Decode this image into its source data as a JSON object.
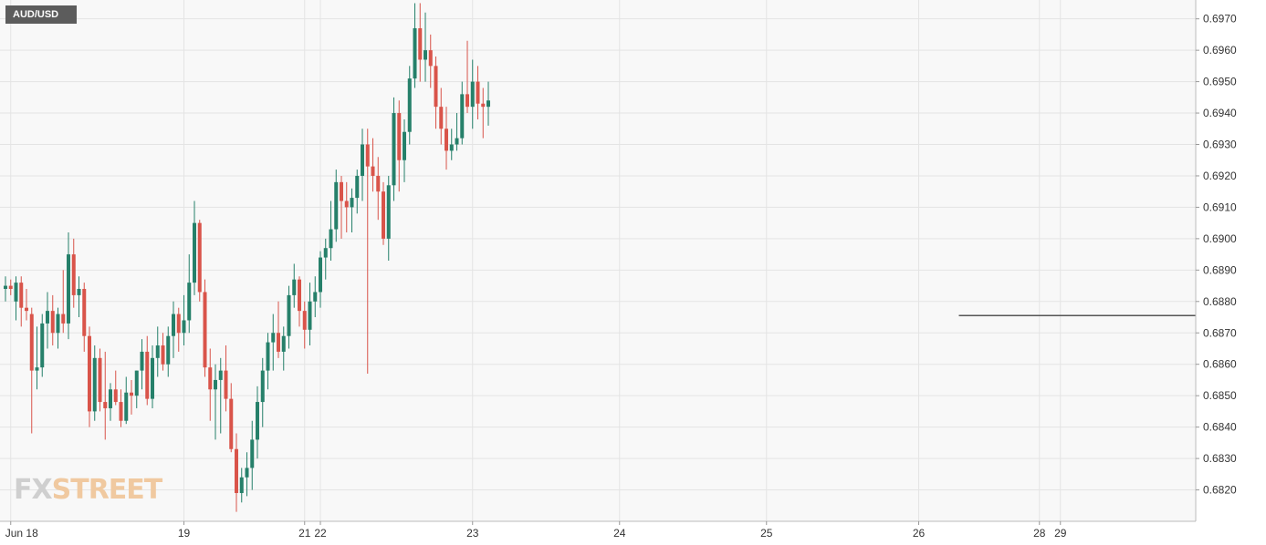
{
  "symbol": "AUD/USD",
  "logo": {
    "part1": "FX",
    "part2": "STREET"
  },
  "colors": {
    "up": "#26806a",
    "down": "#d9544a",
    "grid": "#e4e4e4",
    "background": "#f8f8f8",
    "level_line": "#555555"
  },
  "chart_data": {
    "type": "candlestick",
    "title": "AUD/USD",
    "ylim": [
      0.681,
      0.6976
    ],
    "y_ticks": [
      "0.6820",
      "0.6830",
      "0.6840",
      "0.6850",
      "0.6860",
      "0.6870",
      "0.6880",
      "0.6890",
      "0.6900",
      "0.6910",
      "0.6920",
      "0.6930",
      "0.6940",
      "0.6950",
      "0.6960",
      "0.6970"
    ],
    "x_labels": [
      {
        "label": "Jun 18",
        "index": 1
      },
      {
        "label": "19",
        "index": 34
      },
      {
        "label": "21",
        "index": 57
      },
      {
        "label": "22",
        "index": 60
      },
      {
        "label": "23",
        "index": 89
      },
      {
        "label": "24",
        "index": 117
      },
      {
        "label": "25",
        "index": 145
      },
      {
        "label": "26",
        "index": 174
      },
      {
        "label": "28",
        "index": 197
      },
      {
        "label": "29",
        "index": 201
      }
    ],
    "horizontal_level": {
      "value": 0.68755,
      "from_index": 182
    },
    "grid": true,
    "candles": [
      [
        0.6884,
        0.6888,
        0.688,
        0.6885
      ],
      [
        0.6885,
        0.6887,
        0.6882,
        0.6884
      ],
      [
        0.688,
        0.6888,
        0.6874,
        0.6886
      ],
      [
        0.6886,
        0.6888,
        0.6872,
        0.6878
      ],
      [
        0.6878,
        0.6884,
        0.6874,
        0.6877
      ],
      [
        0.6876,
        0.6878,
        0.6838,
        0.6858
      ],
      [
        0.6858,
        0.6872,
        0.6852,
        0.6859
      ],
      [
        0.6859,
        0.6876,
        0.6856,
        0.6873
      ],
      [
        0.6873,
        0.6883,
        0.6865,
        0.6877
      ],
      [
        0.6877,
        0.6882,
        0.6866,
        0.687
      ],
      [
        0.687,
        0.6878,
        0.6865,
        0.6876
      ],
      [
        0.6876,
        0.689,
        0.687,
        0.6873
      ],
      [
        0.6873,
        0.6902,
        0.6868,
        0.6895
      ],
      [
        0.6895,
        0.69,
        0.6878,
        0.6882
      ],
      [
        0.6882,
        0.6888,
        0.6875,
        0.6884
      ],
      [
        0.6884,
        0.6886,
        0.6864,
        0.6869
      ],
      [
        0.6869,
        0.6872,
        0.684,
        0.6845
      ],
      [
        0.6845,
        0.6866,
        0.6842,
        0.6862
      ],
      [
        0.6862,
        0.6865,
        0.6845,
        0.6848
      ],
      [
        0.6848,
        0.6864,
        0.6836,
        0.6846
      ],
      [
        0.6846,
        0.6854,
        0.6842,
        0.6852
      ],
      [
        0.6852,
        0.6858,
        0.6847,
        0.6848
      ],
      [
        0.6848,
        0.6852,
        0.684,
        0.6842
      ],
      [
        0.6842,
        0.6856,
        0.6841,
        0.6851
      ],
      [
        0.6851,
        0.6855,
        0.6844,
        0.685
      ],
      [
        0.685,
        0.6858,
        0.6846,
        0.6858
      ],
      [
        0.6858,
        0.6868,
        0.6852,
        0.6864
      ],
      [
        0.6864,
        0.6869,
        0.6847,
        0.6849
      ],
      [
        0.6849,
        0.6866,
        0.6846,
        0.6862
      ],
      [
        0.6862,
        0.6872,
        0.6856,
        0.6866
      ],
      [
        0.6866,
        0.687,
        0.6858,
        0.686
      ],
      [
        0.686,
        0.6872,
        0.6856,
        0.6869
      ],
      [
        0.6869,
        0.688,
        0.6862,
        0.6876
      ],
      [
        0.6876,
        0.6878,
        0.6864,
        0.687
      ],
      [
        0.687,
        0.6882,
        0.6866,
        0.6874
      ],
      [
        0.6874,
        0.6895,
        0.687,
        0.6886
      ],
      [
        0.6886,
        0.6912,
        0.6882,
        0.6905
      ],
      [
        0.6905,
        0.6906,
        0.688,
        0.6883
      ],
      [
        0.6883,
        0.6887,
        0.6856,
        0.6859
      ],
      [
        0.6859,
        0.6865,
        0.6842,
        0.6852
      ],
      [
        0.6852,
        0.686,
        0.6836,
        0.6855
      ],
      [
        0.6855,
        0.6862,
        0.6838,
        0.6858
      ],
      [
        0.6858,
        0.6866,
        0.6845,
        0.6849
      ],
      [
        0.6849,
        0.6854,
        0.6832,
        0.6833
      ],
      [
        0.6833,
        0.6838,
        0.6813,
        0.6819
      ],
      [
        0.6819,
        0.6827,
        0.6816,
        0.6824
      ],
      [
        0.6824,
        0.6832,
        0.6818,
        0.6827
      ],
      [
        0.6827,
        0.6842,
        0.682,
        0.6836
      ],
      [
        0.6836,
        0.6853,
        0.683,
        0.6848
      ],
      [
        0.6848,
        0.6862,
        0.684,
        0.6858
      ],
      [
        0.6858,
        0.687,
        0.6852,
        0.6867
      ],
      [
        0.6867,
        0.6876,
        0.6858,
        0.687
      ],
      [
        0.687,
        0.688,
        0.6862,
        0.6864
      ],
      [
        0.6864,
        0.6872,
        0.6858,
        0.6869
      ],
      [
        0.6869,
        0.6885,
        0.6865,
        0.6882
      ],
      [
        0.6882,
        0.6892,
        0.6878,
        0.6887
      ],
      [
        0.6887,
        0.6888,
        0.6872,
        0.6877
      ],
      [
        0.6877,
        0.688,
        0.6865,
        0.6871
      ],
      [
        0.6871,
        0.6886,
        0.6866,
        0.688
      ],
      [
        0.688,
        0.6888,
        0.6875,
        0.6883
      ],
      [
        0.6883,
        0.6896,
        0.6878,
        0.6894
      ],
      [
        0.6894,
        0.69,
        0.6887,
        0.6897
      ],
      [
        0.6897,
        0.6912,
        0.6893,
        0.6903
      ],
      [
        0.6903,
        0.6922,
        0.6899,
        0.6918
      ],
      [
        0.6918,
        0.692,
        0.69,
        0.6912
      ],
      [
        0.6912,
        0.6918,
        0.6902,
        0.691
      ],
      [
        0.691,
        0.6916,
        0.6902,
        0.6913
      ],
      [
        0.6913,
        0.6922,
        0.6908,
        0.692
      ],
      [
        0.692,
        0.6935,
        0.6912,
        0.693
      ],
      [
        0.693,
        0.6935,
        0.6857,
        0.6923
      ],
      [
        0.6923,
        0.6932,
        0.6915,
        0.692
      ],
      [
        0.692,
        0.6926,
        0.6906,
        0.6915
      ],
      [
        0.6915,
        0.6918,
        0.6898,
        0.69
      ],
      [
        0.69,
        0.692,
        0.6893,
        0.6917
      ],
      [
        0.6917,
        0.6945,
        0.6912,
        0.694
      ],
      [
        0.694,
        0.6944,
        0.6915,
        0.6925
      ],
      [
        0.6925,
        0.6938,
        0.6918,
        0.6934
      ],
      [
        0.6934,
        0.6955,
        0.693,
        0.6951
      ],
      [
        0.6951,
        0.6975,
        0.6948,
        0.6967
      ],
      [
        0.6967,
        0.6975,
        0.695,
        0.6957
      ],
      [
        0.6957,
        0.6972,
        0.695,
        0.696
      ],
      [
        0.696,
        0.6965,
        0.6948,
        0.6955
      ],
      [
        0.6955,
        0.6958,
        0.6935,
        0.6942
      ],
      [
        0.6942,
        0.6948,
        0.693,
        0.6935
      ],
      [
        0.6935,
        0.6942,
        0.6922,
        0.6928
      ],
      [
        0.6928,
        0.6935,
        0.6925,
        0.693
      ],
      [
        0.693,
        0.694,
        0.6928,
        0.6932
      ],
      [
        0.6932,
        0.695,
        0.693,
        0.6946
      ],
      [
        0.6946,
        0.6963,
        0.694,
        0.6942
      ],
      [
        0.6942,
        0.6957,
        0.6935,
        0.695
      ],
      [
        0.695,
        0.6955,
        0.6938,
        0.6943
      ],
      [
        0.6943,
        0.6948,
        0.6932,
        0.6942
      ],
      [
        0.6942,
        0.695,
        0.6936,
        0.6944
      ]
    ]
  }
}
